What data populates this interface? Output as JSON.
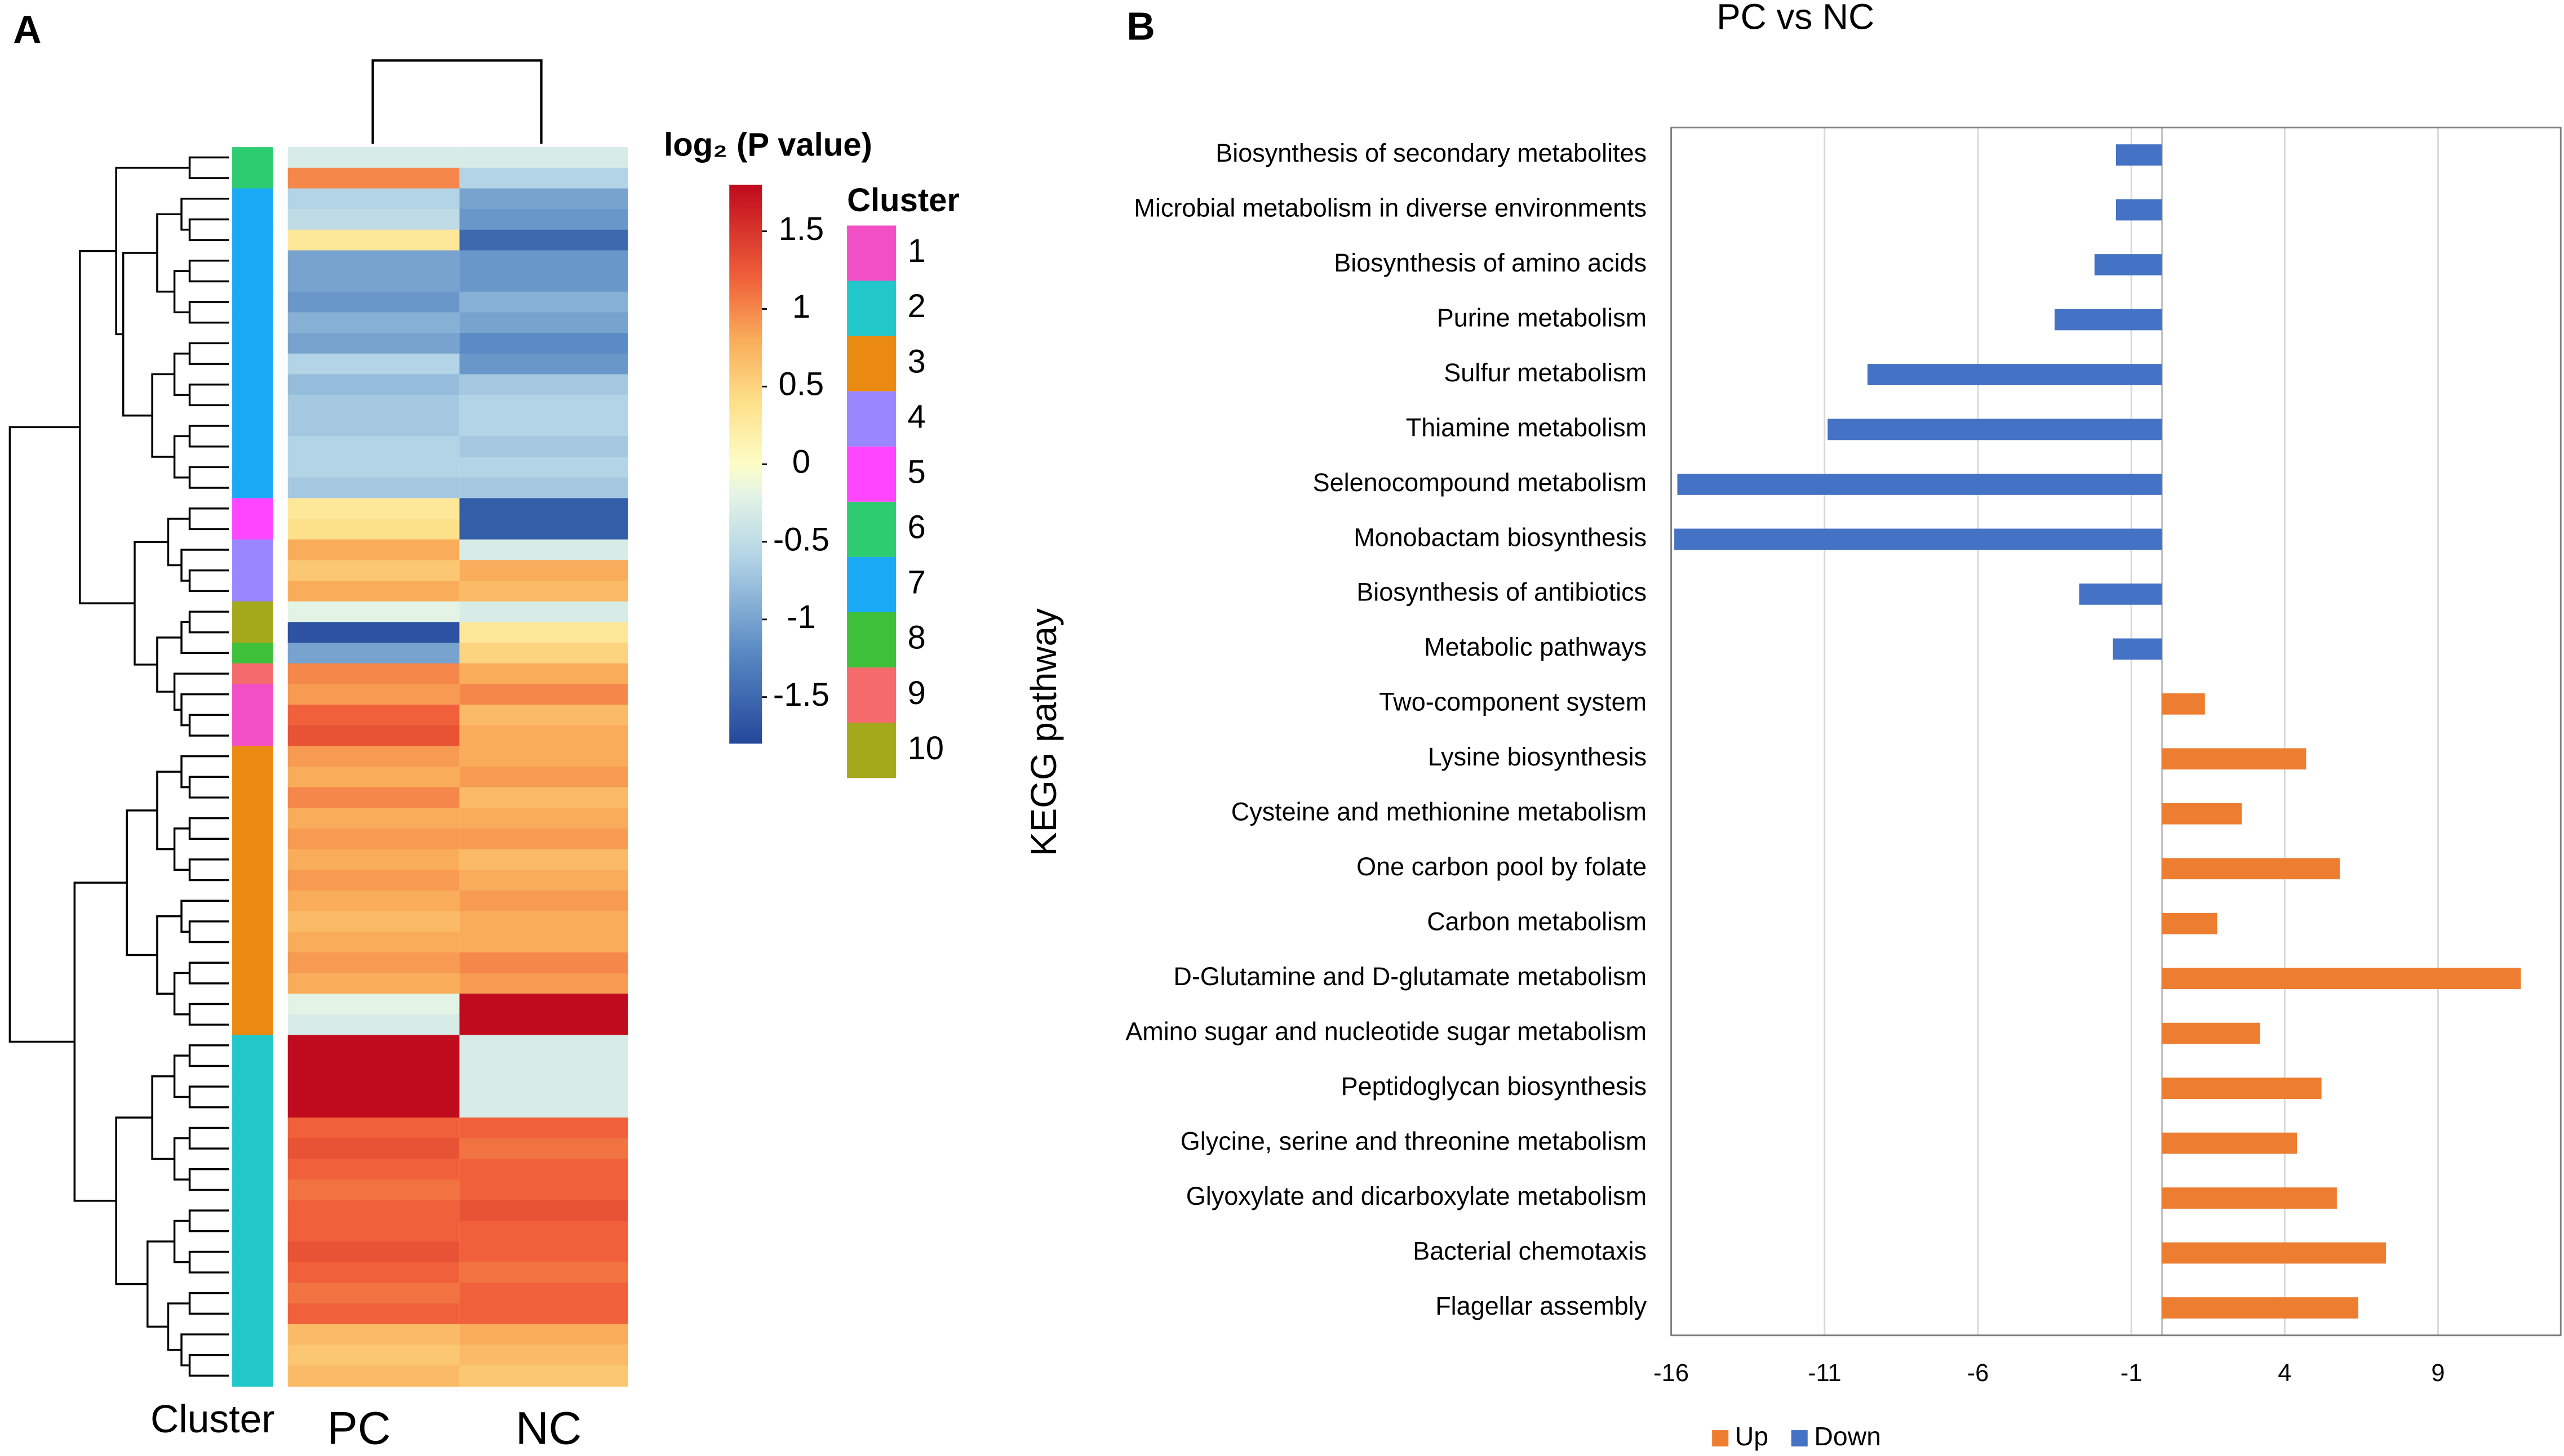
{
  "chart_data": [
    {
      "type": "heatmap",
      "panel": "A",
      "columns": [
        "PC",
        "NC"
      ],
      "cluster_axis_label": "Cluster",
      "colorbar_title": "log₂ (P value)",
      "clim": [
        -1.8,
        1.8
      ],
      "cticks": [
        1.5,
        1,
        0.5,
        0,
        -0.5,
        -1,
        -1.5
      ],
      "colorscale": [
        {
          "value": -1.8,
          "color": "#23479a"
        },
        {
          "value": -1.2,
          "color": "#5a8bc4"
        },
        {
          "value": -0.6,
          "color": "#b3d4e6"
        },
        {
          "value": -0.2,
          "color": "#e3f4e6"
        },
        {
          "value": 0,
          "color": "#fdfdc6"
        },
        {
          "value": 0.4,
          "color": "#fde08a"
        },
        {
          "value": 0.8,
          "color": "#f9ad5a"
        },
        {
          "value": 1.2,
          "color": "#f0603a"
        },
        {
          "value": 1.8,
          "color": "#c00a1e"
        }
      ],
      "cluster_legend": {
        "title": "Cluster",
        "labels": [
          1,
          2,
          3,
          4,
          5,
          6,
          7,
          8,
          9,
          10
        ],
        "colors": [
          "#f24fc6",
          "#22c7c9",
          "#ea8a10",
          "#9a86ff",
          "#ff45ff",
          "#2ecc71",
          "#1aa9f5",
          "#3ec03a",
          "#f56a6a",
          "#a3a91a"
        ]
      },
      "clusters": [
        6,
        6,
        7,
        7,
        7,
        7,
        7,
        7,
        7,
        7,
        7,
        7,
        7,
        7,
        7,
        7,
        7,
        5,
        5,
        4,
        4,
        4,
        10,
        10,
        8,
        9,
        1,
        1,
        1,
        3,
        3,
        3,
        3,
        3,
        3,
        3,
        3,
        3,
        3,
        3,
        3,
        3,
        3,
        2,
        2,
        2,
        2,
        2,
        2,
        2,
        2,
        2,
        2,
        2,
        2,
        2,
        2,
        2,
        2,
        2
      ],
      "rows": [
        [
          -0.3,
          -0.3
        ],
        [
          1.0,
          -0.6
        ],
        [
          -0.6,
          -1.0
        ],
        [
          -0.5,
          -1.1
        ],
        [
          0.3,
          -1.5
        ],
        [
          -1.0,
          -1.1
        ],
        [
          -1.0,
          -1.1
        ],
        [
          -1.1,
          -0.9
        ],
        [
          -0.9,
          -1.0
        ],
        [
          -1.0,
          -1.2
        ],
        [
          -0.6,
          -1.1
        ],
        [
          -0.8,
          -0.7
        ],
        [
          -0.7,
          -0.6
        ],
        [
          -0.7,
          -0.6
        ],
        [
          -0.6,
          -0.7
        ],
        [
          -0.6,
          -0.6
        ],
        [
          -0.7,
          -0.7
        ],
        [
          0.3,
          -1.6
        ],
        [
          0.4,
          -1.6
        ],
        [
          0.8,
          -0.3
        ],
        [
          0.6,
          0.8
        ],
        [
          0.8,
          0.7
        ],
        [
          -0.2,
          -0.3
        ],
        [
          -1.7,
          0.3
        ],
        [
          -1.0,
          0.5
        ],
        [
          1.0,
          0.8
        ],
        [
          0.9,
          1.0
        ],
        [
          1.2,
          0.7
        ],
        [
          1.3,
          0.8
        ],
        [
          0.9,
          0.8
        ],
        [
          0.8,
          0.9
        ],
        [
          1.0,
          0.7
        ],
        [
          0.8,
          0.8
        ],
        [
          0.9,
          0.9
        ],
        [
          0.8,
          0.7
        ],
        [
          0.9,
          0.8
        ],
        [
          0.8,
          0.9
        ],
        [
          0.7,
          0.8
        ],
        [
          0.8,
          0.8
        ],
        [
          0.9,
          1.0
        ],
        [
          0.8,
          0.9
        ],
        [
          -0.2,
          1.8
        ],
        [
          -0.3,
          1.8
        ],
        [
          1.8,
          -0.3
        ],
        [
          1.8,
          -0.3
        ],
        [
          1.8,
          -0.3
        ],
        [
          1.8,
          -0.3
        ],
        [
          1.2,
          1.2
        ],
        [
          1.3,
          1.1
        ],
        [
          1.2,
          1.2
        ],
        [
          1.1,
          1.2
        ],
        [
          1.2,
          1.3
        ],
        [
          1.2,
          1.2
        ],
        [
          1.3,
          1.2
        ],
        [
          1.2,
          1.1
        ],
        [
          1.1,
          1.2
        ],
        [
          1.2,
          1.2
        ],
        [
          0.7,
          0.8
        ],
        [
          0.6,
          0.7
        ],
        [
          0.7,
          0.6
        ]
      ]
    },
    {
      "type": "bar",
      "panel": "B",
      "orientation": "horizontal",
      "title": "PC vs NC",
      "ylabel": "KEGG pathway",
      "categories": [
        "Biosynthesis of secondary metabolites",
        "Microbial metabolism in diverse environments",
        "Biosynthesis of amino acids",
        "Purine metabolism",
        "Sulfur metabolism",
        "Thiamine metabolism",
        "Selenocompound metabolism",
        "Monobactam biosynthesis",
        "Biosynthesis of antibiotics",
        "Metabolic pathways",
        "Two-component system",
        "Lysine biosynthesis",
        "Cysteine and methionine metabolism",
        "One carbon pool by folate",
        "Carbon metabolism",
        "D-Glutamine and D-glutamate metabolism",
        "Amino sugar and nucleotide sugar metabolism",
        "Peptidoglycan biosynthesis",
        "Glycine, serine and threonine metabolism",
        "Glyoxylate and dicarboxylate metabolism",
        "Bacterial chemotaxis",
        "Flagellar assembly"
      ],
      "series": [
        {
          "name": "Up",
          "color": "#ed7d31",
          "values": [
            null,
            null,
            null,
            null,
            null,
            null,
            null,
            null,
            null,
            null,
            1.4,
            4.7,
            2.6,
            5.8,
            1.8,
            11.7,
            3.2,
            5.2,
            4.4,
            5.7,
            7.3,
            6.4
          ]
        },
        {
          "name": "Down",
          "color": "#4472c4",
          "values": [
            -1.5,
            -1.5,
            -2.2,
            -3.5,
            -9.6,
            -10.9,
            -15.8,
            -15.9,
            -2.7,
            -1.6,
            null,
            null,
            null,
            null,
            null,
            null,
            null,
            null,
            null,
            null,
            null,
            null
          ]
        }
      ],
      "xlim": [
        -16,
        13
      ],
      "xticks": [
        -16,
        -11,
        -6,
        -1,
        4,
        9
      ],
      "grid": true,
      "legend": "bottom"
    }
  ]
}
